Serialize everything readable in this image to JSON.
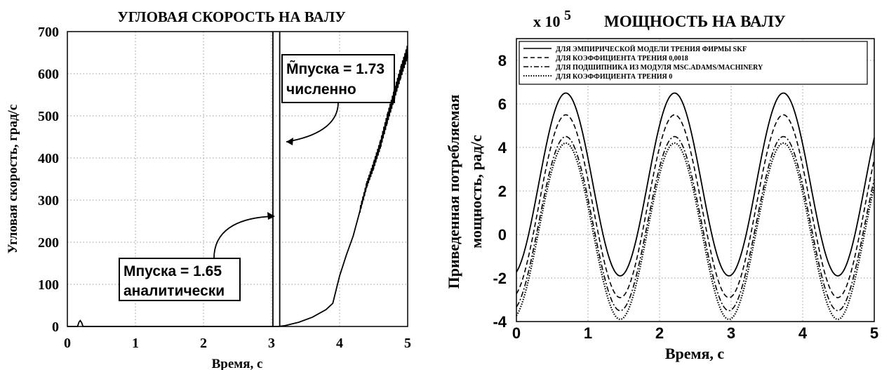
{
  "chart_data": [
    {
      "type": "line",
      "title": "УГЛОВАЯ СКОРОСТЬ НА ВАЛУ",
      "xlabel": "Время, с",
      "ylabel": "Угловая скорость, град/с",
      "xlim": [
        0,
        5
      ],
      "ylim": [
        0,
        700
      ],
      "xticks": [
        "0",
        "1",
        "2",
        "3",
        "4",
        "5"
      ],
      "yticks": [
        "0",
        "100",
        "200",
        "300",
        "400",
        "500",
        "600",
        "700"
      ],
      "grid": true,
      "series": [
        {
          "x": [
            0,
            0.15,
            0.17,
            0.19,
            0.21,
            0.23,
            1.0,
            2.0,
            3.0,
            3.1,
            3.2,
            3.4,
            3.6,
            3.8,
            3.9,
            4.0,
            4.1,
            4.2,
            4.3,
            4.4,
            4.5,
            4.6,
            4.7,
            4.8,
            4.9,
            5.0
          ],
          "y": [
            0,
            0,
            10,
            14,
            9,
            0,
            0,
            0,
            0,
            0,
            2,
            10,
            22,
            40,
            55,
            120,
            170,
            215,
            275,
            335,
            380,
            430,
            490,
            545,
            600,
            650
          ]
        }
      ],
      "markers": [
        {
          "x": 3.02,
          "label_line1": "Mпуска = 1.65",
          "label_line2": "аналитически"
        },
        {
          "x": 3.12,
          "label_line1": "M̃пуска = 1.73",
          "label_line2": "численно"
        }
      ]
    },
    {
      "type": "line",
      "title": "МОЩНОСТЬ НА ВАЛУ",
      "multiplier": "x 10",
      "multiplier_exp": "5",
      "xlabel": "Время, с",
      "ylabel_line1": "Приведенная потребляемая",
      "ylabel_line2": "мощность, рад/с",
      "xlim": [
        0,
        5
      ],
      "ylim": [
        -4,
        9
      ],
      "xticks": [
        "0",
        "1",
        "2",
        "3",
        "4",
        "5"
      ],
      "yticks": [
        "-4",
        "-2",
        "0",
        "2",
        "4",
        "6",
        "8"
      ],
      "grid": true,
      "legend_placement": "top",
      "period": 1.52,
      "peak_x": 0.69,
      "series": [
        {
          "name": "ДЛЯ ЭМПИРИЧЕСКОЙ МОДЕЛИ ТРЕНИЯ ФИРМЫ SKF",
          "style": "solid",
          "max": 6.5,
          "min": -1.9
        },
        {
          "name": "ДЛЯ КОЭФФИЦИЕНТА ТРЕНИЯ 0,0018",
          "style": "dashed",
          "max": 5.5,
          "min": -2.9
        },
        {
          "name": "ДЛЯ ПОДШИПНИКА ИЗ МОДУЛЯ MSC.ADAMS/MACHINERY",
          "style": "dashdot",
          "max": 4.5,
          "min": -3.5
        },
        {
          "name": "ДЛЯ КОЭФФИЦИЕНТА ТРЕНИЯ 0",
          "style": "dotted",
          "max": 4.2,
          "min": -3.9
        }
      ]
    }
  ]
}
